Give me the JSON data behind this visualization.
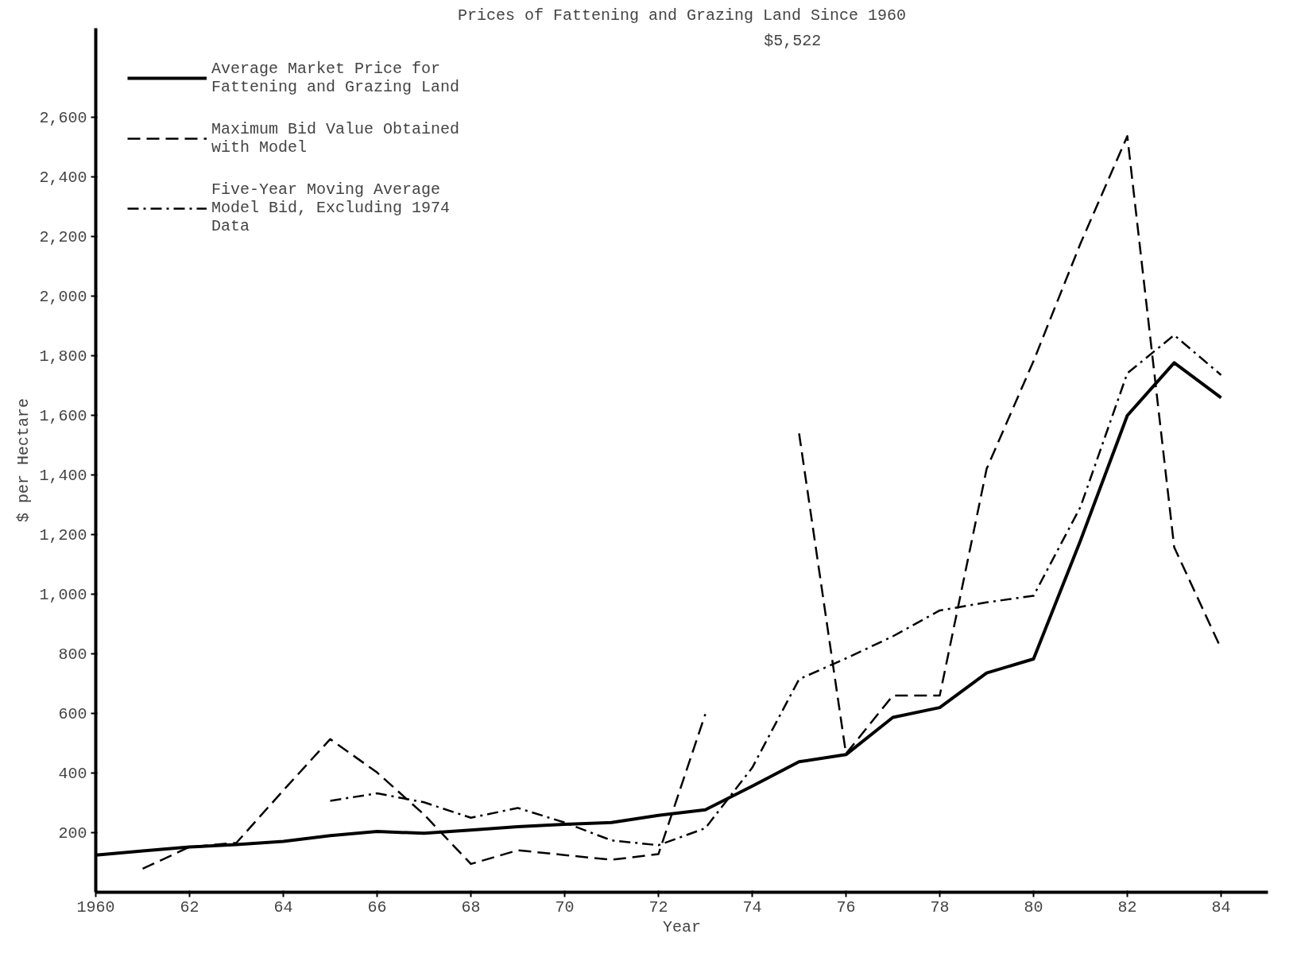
{
  "chart_data": {
    "type": "line",
    "title": "Prices of Fattening and Grazing Land Since 1960",
    "xlabel": "Year",
    "ylabel": "$ per Hectare",
    "x": [
      1960,
      1961,
      1962,
      1963,
      1964,
      1965,
      1966,
      1967,
      1968,
      1969,
      1970,
      1971,
      1972,
      1973,
      1974,
      1975,
      1976,
      1977,
      1978,
      1979,
      1980,
      1981,
      1982,
      1983,
      1984
    ],
    "series": [
      {
        "name": "Average Market Price for\nFattening and Grazing Land",
        "color": "#000000",
        "line_style": "solid",
        "values": [
          125,
          139,
          152,
          160,
          171,
          190,
          204,
          198,
          209,
          220,
          228,
          234,
          258,
          277,
          356,
          438,
          462,
          587,
          620,
          736,
          783,
          1180,
          1600,
          1777,
          1660
        ]
      },
      {
        "name": "Maximum Bid Value Obtained\nwith Model",
        "color": "#000000",
        "line_style": "dashed",
        "values": [
          null,
          79,
          152,
          166,
          342,
          514,
          402,
          261,
          95,
          141,
          125,
          109,
          128,
          598,
          null,
          1540,
          465,
          660,
          660,
          1421,
          1783,
          2177,
          2538,
          1158,
          818
        ]
      },
      {
        "name": "Five-Year Moving Average\nModel Bid, Excluding 1974\nData",
        "color": "#000000",
        "line_style": "dashdot",
        "values": [
          null,
          null,
          null,
          null,
          null,
          307,
          332,
          302,
          250,
          283,
          234,
          174,
          158,
          215,
          418,
          715,
          785,
          859,
          946,
          973,
          995,
          1293,
          1742,
          1870,
          1736
        ]
      }
    ],
    "xlim": [
      1960,
      1985
    ],
    "ylim": [
      0,
      2900
    ],
    "xticks": [
      1960,
      {
        "value": 1962,
        "label": "62"
      },
      {
        "value": 1964,
        "label": "64"
      },
      {
        "value": 1966,
        "label": "66"
      },
      {
        "value": 1968,
        "label": "68"
      },
      {
        "value": 1970,
        "label": "70"
      },
      {
        "value": 1972,
        "label": "72"
      },
      {
        "value": 1974,
        "label": "74"
      },
      {
        "value": 1976,
        "label": "76"
      },
      {
        "value": 1978,
        "label": "78"
      },
      {
        "value": 1980,
        "label": "80"
      },
      {
        "value": 1982,
        "label": "82"
      },
      {
        "value": 1984,
        "label": "84"
      }
    ],
    "yticks": [
      {
        "value": 200,
        "label": "200"
      },
      {
        "value": 400,
        "label": "400"
      },
      {
        "value": 600,
        "label": "600"
      },
      {
        "value": 800,
        "label": "800"
      },
      {
        "value": 1000,
        "label": "1,000"
      },
      {
        "value": 1200,
        "label": "1,200"
      },
      {
        "value": 1400,
        "label": "1,400"
      },
      {
        "value": 1600,
        "label": "1,600"
      },
      {
        "value": 1800,
        "label": "1,800"
      },
      {
        "value": 2000,
        "label": "2,000"
      },
      {
        "value": 2200,
        "label": "2,200"
      },
      {
        "value": 2400,
        "label": "2,400"
      },
      {
        "value": 2600,
        "label": "2,600"
      }
    ],
    "annotations": [
      "$5,522"
    ],
    "grid": false,
    "legend": "top left"
  }
}
